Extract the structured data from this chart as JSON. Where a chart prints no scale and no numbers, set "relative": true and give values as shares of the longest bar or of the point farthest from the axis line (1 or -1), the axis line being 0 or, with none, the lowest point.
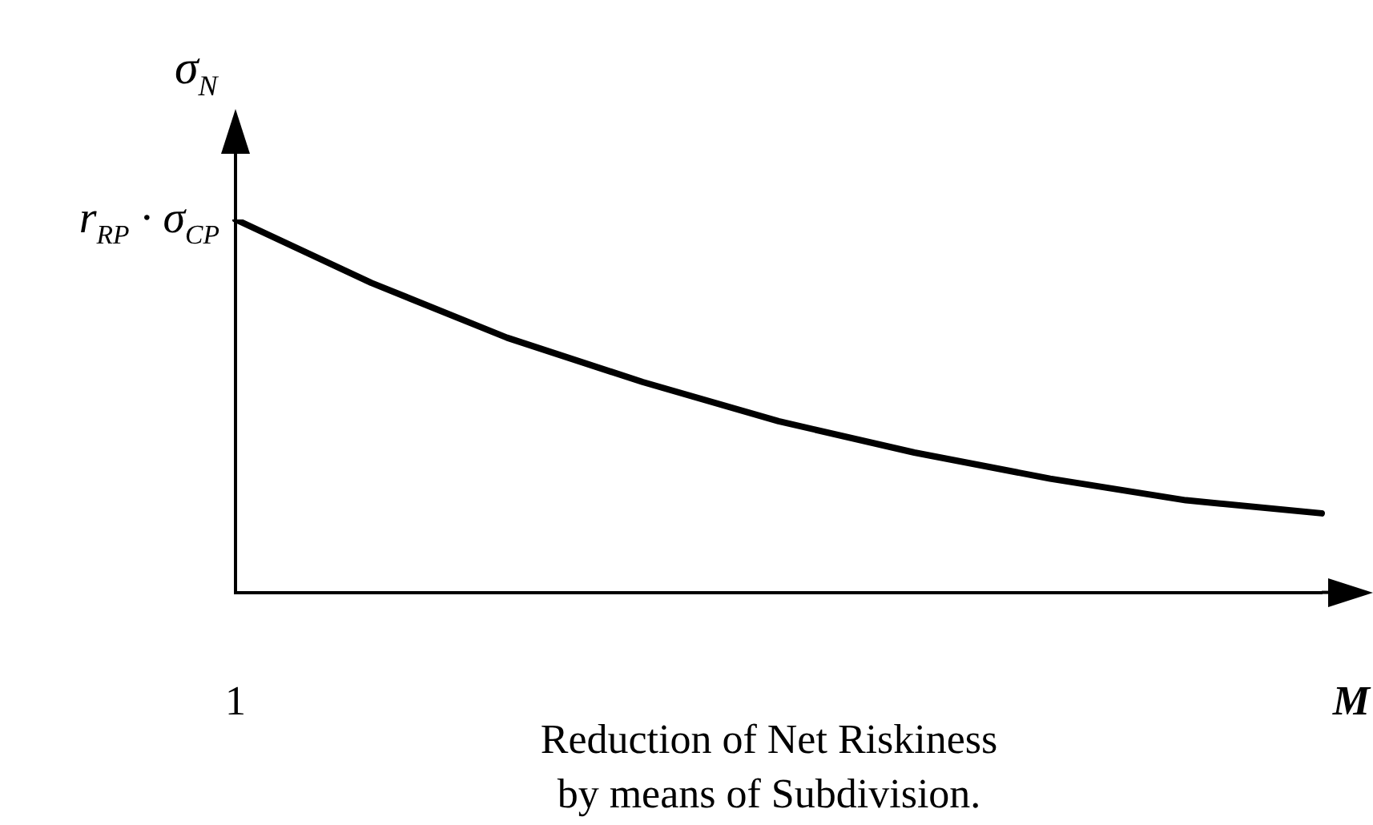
{
  "chart_data": {
    "type": "line",
    "relative": true,
    "ylabel": "σ$_{N}$",
    "xlabel": "M",
    "categories": [
      null,
      null,
      null,
      null,
      null,
      null,
      null,
      null,
      null
    ],
    "series": [
      {
        "color": "#000000",
        "values": [
          1,
          0.83,
          0.683,
          0.564,
          0.459,
          0.375,
          0.305,
          0.247,
          0.212
        ]
      }
    ],
    "annotations": [
      "1",
      "r$_{RP}$ · σ$_{CP}$",
      "Reduction of Net Riskiness\nby means of Subdivision."
    ],
    "grid": false,
    "legend": false,
    "marker": "none",
    "line_style": "solid"
  }
}
